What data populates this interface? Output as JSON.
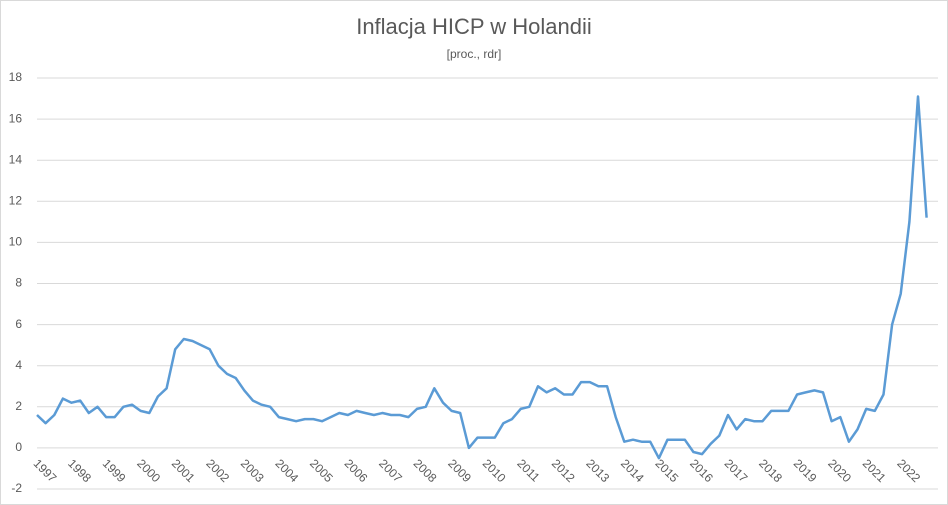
{
  "chart_data": {
    "type": "line",
    "title": "Inflacja HICP w Holandii",
    "subtitle": "[proc., rdr]",
    "categories": [
      "1997",
      null,
      null,
      null,
      "1998",
      null,
      null,
      null,
      "1999",
      null,
      null,
      null,
      "2000",
      null,
      null,
      null,
      "2001",
      null,
      null,
      null,
      "2002",
      null,
      null,
      null,
      "2003",
      null,
      null,
      null,
      "2004",
      null,
      null,
      null,
      "2005",
      null,
      null,
      null,
      "2006",
      null,
      null,
      null,
      "2007",
      null,
      null,
      null,
      "2008",
      null,
      null,
      null,
      "2009",
      null,
      null,
      null,
      "2010",
      null,
      null,
      null,
      "2011",
      null,
      null,
      null,
      "2012",
      null,
      null,
      null,
      "2013",
      null,
      null,
      null,
      "2014",
      null,
      null,
      null,
      "2015",
      null,
      null,
      null,
      "2016",
      null,
      null,
      null,
      "2017",
      null,
      null,
      null,
      "2018",
      null,
      null,
      null,
      "2019",
      null,
      null,
      null,
      "2020",
      null,
      null,
      null,
      "2021",
      null,
      null,
      null,
      "2022",
      null,
      null,
      null
    ],
    "series": [
      {
        "name": "HICP",
        "color": "#5b9bd5",
        "values": [
          1.6,
          1.2,
          1.6,
          2.4,
          2.2,
          2.3,
          1.7,
          2.0,
          1.5,
          1.5,
          2.0,
          2.1,
          1.8,
          1.7,
          2.5,
          2.9,
          4.8,
          5.3,
          5.2,
          5.0,
          4.8,
          4.0,
          3.6,
          3.4,
          2.8,
          2.3,
          2.1,
          2.0,
          1.5,
          1.4,
          1.3,
          1.4,
          1.4,
          1.3,
          1.5,
          1.7,
          1.6,
          1.8,
          1.7,
          1.6,
          1.7,
          1.6,
          1.6,
          1.5,
          1.9,
          2.0,
          2.9,
          2.2,
          1.8,
          1.7,
          0.0,
          0.5,
          0.5,
          0.5,
          1.2,
          1.4,
          1.9,
          2.0,
          3.0,
          2.7,
          2.9,
          2.6,
          2.6,
          3.2,
          3.2,
          3.0,
          3.0,
          1.5,
          0.3,
          0.4,
          0.3,
          0.3,
          -0.5,
          0.4,
          0.4,
          0.4,
          -0.2,
          -0.3,
          0.2,
          0.6,
          1.6,
          0.9,
          1.4,
          1.3,
          1.3,
          1.8,
          1.8,
          1.8,
          2.6,
          2.7,
          2.8,
          2.7,
          1.3,
          1.5,
          0.3,
          0.9,
          1.9,
          1.8,
          2.6,
          6.0,
          7.5,
          11.0,
          17.1,
          11.2
        ]
      }
    ],
    "ylim": [
      -2,
      18
    ],
    "yticks": [
      -2,
      0,
      2,
      4,
      6,
      8,
      10,
      12,
      14,
      16,
      18
    ],
    "grid": true
  }
}
